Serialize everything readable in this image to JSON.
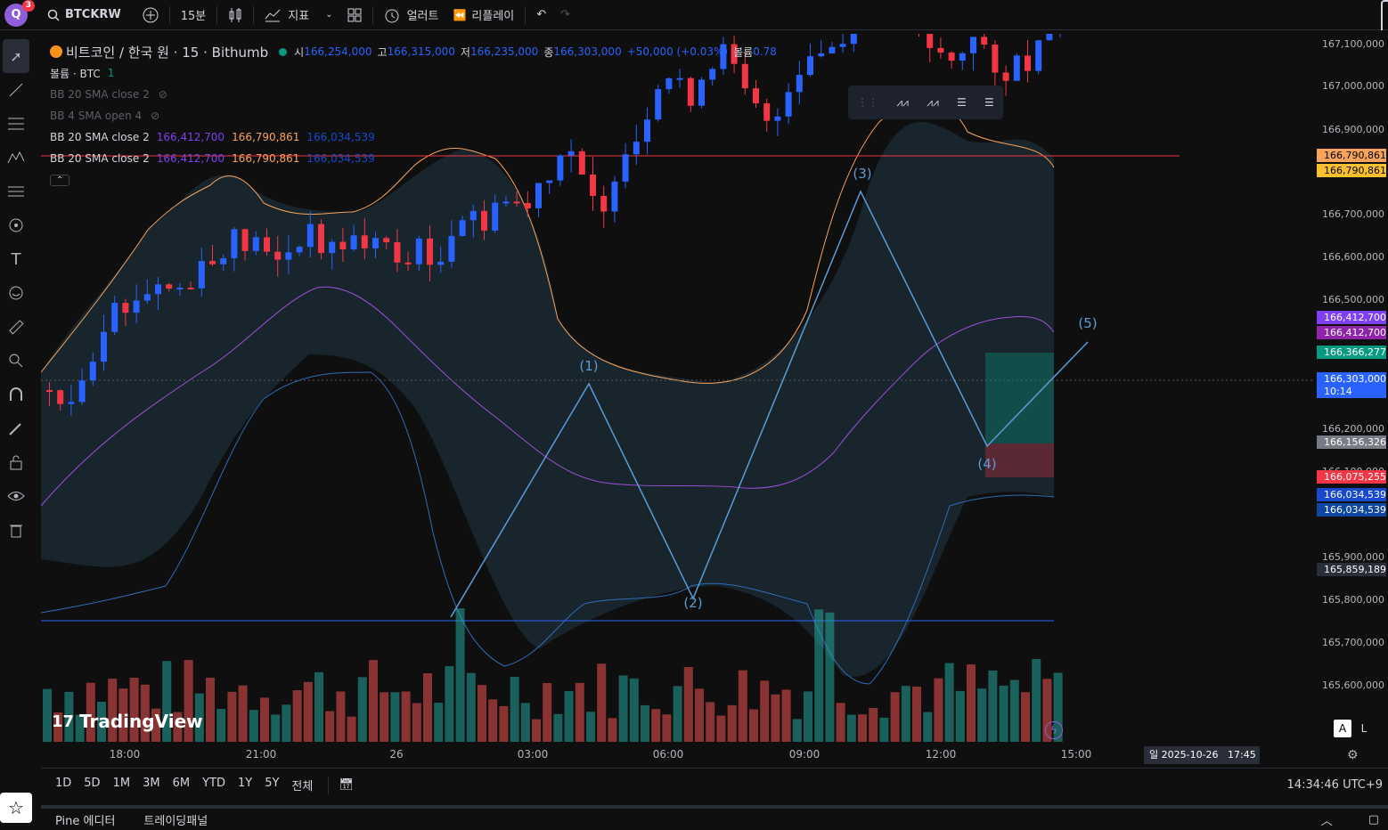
{
  "topbar": {
    "logo": "Q",
    "badge": "3",
    "symbol": "BTCKRW",
    "interval": "15분",
    "indicators": "지표",
    "alert": "얼러트",
    "replay": "리플레이"
  },
  "legend": {
    "title": "비트코인 / 한국 원 · 15 · Bithumb",
    "o_label": "시",
    "o": "166,254,000",
    "h_label": "고",
    "h": "166,315,000",
    "l_label": "저",
    "l": "166,235,000",
    "c_label": "종",
    "c": "166,303,000",
    "change": "+50,000 (+0.03%)",
    "vol_label": "볼륨",
    "vol": "0.78",
    "volume_row": "볼륨 · BTC",
    "volume_val": "1",
    "bb1": "BB 20 SMA close 2",
    "bb2": "BB 4 SMA open 4",
    "bb3": "BB 20 SMA close 2",
    "bb3_v1": "166,412,700",
    "bb3_v2": "166,790,861",
    "bb3_v3": "166,034,539",
    "bb4": "BB 20 SMA close 2",
    "bb4_v1": "166,412,700",
    "bb4_v2": "166,790,861",
    "bb4_v3": "166,034,539"
  },
  "price_axis": {
    "labels": [
      "167,100,000",
      "167,000,000",
      "166,900,000",
      "166,700,000",
      "166,600,000",
      "166,500,000",
      "166,200,000",
      "166,100,000",
      "165,900,000",
      "165,800,000",
      "165,700,000",
      "165,600,000"
    ],
    "tags": [
      {
        "text": "166,790,861",
        "color": "#f7a35c",
        "fg": "#000"
      },
      {
        "text": "166,790,861",
        "color": "#fbc02d",
        "fg": "#000"
      },
      {
        "text": "166,412,700",
        "color": "#7e3ff2",
        "fg": "#fff"
      },
      {
        "text": "166,412,700",
        "color": "#8e24aa",
        "fg": "#fff"
      },
      {
        "text": "166,366,277",
        "color": "#089981",
        "fg": "#fff"
      },
      {
        "text": "166,303,000",
        "color": "#2962ff",
        "fg": "#fff"
      },
      {
        "text": "10:14",
        "color": "#2962ff",
        "fg": "#fff"
      },
      {
        "text": "166,156,326",
        "color": "#787b86",
        "fg": "#fff"
      },
      {
        "text": "166,075,255",
        "color": "#f23645",
        "fg": "#fff"
      },
      {
        "text": "166,034,539",
        "color": "#1848cc",
        "fg": "#fff"
      },
      {
        "text": "166,034,539",
        "color": "#0d47a1",
        "fg": "#fff"
      },
      {
        "text": "165,859,189",
        "color": "#2a2e39",
        "fg": "#fff"
      }
    ]
  },
  "time_axis": {
    "labels": [
      "18:00",
      "21:00",
      "26",
      "03:00",
      "06:00",
      "09:00",
      "12:00",
      "15:00"
    ],
    "cursor": "일 2025-10-26   17:45"
  },
  "waves": [
    "(1)",
    "(2)",
    "(3)",
    "(4)",
    "(5)"
  ],
  "watermark": "TradingView",
  "bottombar": {
    "ranges": [
      "1D",
      "5D",
      "1M",
      "3M",
      "6M",
      "YTD",
      "1Y",
      "5Y",
      "전체"
    ],
    "clock": "14:34:46 UTC+9",
    "auto": "A",
    "log": "L"
  },
  "footer": {
    "tab1": "Pine 에디터",
    "tab2": "트레이딩패널"
  },
  "colors": {
    "up": "#2962ff",
    "down": "#f23645",
    "upper": "#f7a35c",
    "basis": "#9c4fd6",
    "lower": "#2f6db5",
    "hline_red": "#f23645",
    "hline_blue": "#2962ff"
  }
}
